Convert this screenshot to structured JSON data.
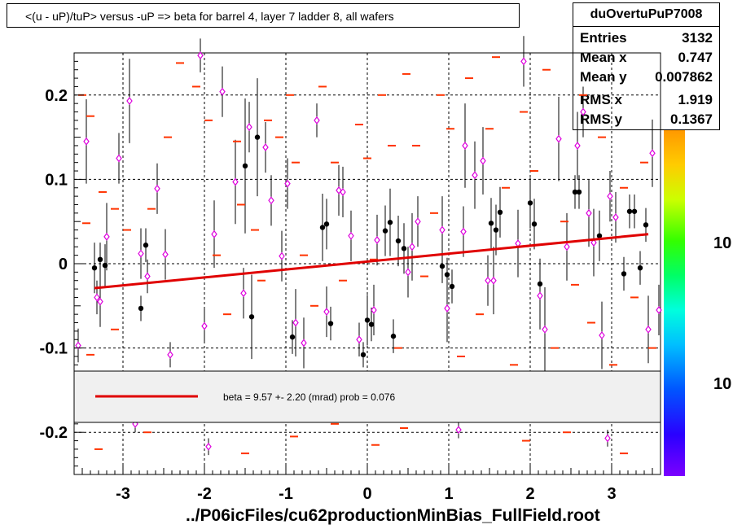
{
  "title": "<(u - uP)/tuP> versus  -uP => beta for barrel 4, layer 7 ladder 8, all wafers",
  "stats": {
    "name": "duOvertuPuP7008",
    "rows": [
      {
        "label": "Entries",
        "value": "3132"
      },
      {
        "label": "Mean x",
        "value": "0.747"
      },
      {
        "label": "Mean y",
        "value": "0.007862"
      },
      {
        "label": "RMS x",
        "value": "1.919"
      },
      {
        "label": "RMS y",
        "value": "0.1367"
      }
    ]
  },
  "legend": {
    "text": "beta =    9.57 +-  2.20 (mrad) prob = 0.076",
    "line_color": "#e00000"
  },
  "footer": "../P06icFiles/cu62productionMinBias_FullField.root",
  "colors": {
    "heat": "#ff3300",
    "profile_black": "#000000",
    "profile_magenta": "#dd00dd",
    "fit": "#e00000"
  },
  "chart_data": {
    "type": "scatter",
    "title": "<(u - uP)/tuP> versus  -uP => beta for barrel 4, layer 7 ladder 8, all wafers",
    "xlabel": "",
    "ylabel": "",
    "xlim": [
      -3.6,
      3.6
    ],
    "ylim": [
      -0.25,
      0.25
    ],
    "x_ticks": [
      -3,
      -2,
      -1,
      0,
      1,
      2,
      3
    ],
    "x_tick_labels": [
      "-3",
      "-2",
      "-1",
      "0",
      "1",
      "2",
      "3"
    ],
    "y_ticks": [
      -0.2,
      -0.1,
      0,
      0.1,
      0.2
    ],
    "y_tick_labels": [
      "-0.2",
      "-0.1",
      "0",
      "0.1",
      "0.2"
    ],
    "grid": true,
    "colorbar_tick_labels": [
      "10",
      "10"
    ],
    "fit_line": {
      "x": [
        -3.35,
        3.45
      ],
      "y": [
        -0.029,
        0.035
      ]
    },
    "series": [
      {
        "marker": "black-dot",
        "points": [
          [
            -3.35,
            -0.005,
            0.03
          ],
          [
            -3.28,
            0.005,
            0.02
          ],
          [
            -3.22,
            -0.002,
            0.025
          ],
          [
            -2.78,
            -0.053,
            0.015
          ],
          [
            -2.72,
            0.022,
            0.02
          ],
          [
            -1.5,
            0.116,
            0.08
          ],
          [
            -1.42,
            -0.063,
            0.05
          ],
          [
            -1.35,
            0.15,
            0.07
          ],
          [
            -0.92,
            -0.087,
            0.02
          ],
          [
            -0.55,
            0.043,
            0.04
          ],
          [
            -0.5,
            0.047,
            0.03
          ],
          [
            -0.45,
            -0.071,
            0.02
          ],
          [
            0.0,
            -0.067,
            0.03
          ],
          [
            0.05,
            -0.072,
            0.02
          ],
          [
            -0.05,
            -0.108,
            0.015
          ],
          [
            0.22,
            0.039,
            0.03
          ],
          [
            0.28,
            0.049,
            0.04
          ],
          [
            0.32,
            -0.086,
            0.02
          ],
          [
            0.38,
            0.027,
            0.03
          ],
          [
            0.45,
            0.018,
            0.03
          ],
          [
            0.92,
            -0.003,
            0.02
          ],
          [
            0.98,
            -0.013,
            0.02
          ],
          [
            1.04,
            -0.027,
            0.02
          ],
          [
            1.52,
            0.048,
            0.03
          ],
          [
            1.58,
            0.04,
            0.03
          ],
          [
            1.63,
            0.061,
            0.03
          ],
          [
            2.0,
            0.072,
            0.03
          ],
          [
            2.05,
            0.047,
            0.03
          ],
          [
            2.12,
            -0.024,
            0.03
          ],
          [
            2.55,
            0.085,
            0.02
          ],
          [
            2.6,
            0.085,
            0.02
          ],
          [
            2.85,
            0.033,
            0.03
          ],
          [
            3.15,
            -0.012,
            0.02
          ],
          [
            3.22,
            0.062,
            0.02
          ],
          [
            3.28,
            0.062,
            0.02
          ],
          [
            3.35,
            -0.005,
            0.02
          ],
          [
            3.42,
            0.046,
            0.02
          ]
        ]
      },
      {
        "marker": "magenta-open-diamond",
        "points": [
          [
            -3.45,
            0.145,
            0.05
          ],
          [
            -3.55,
            -0.097,
            0.02
          ],
          [
            -3.32,
            -0.04,
            0.02
          ],
          [
            -3.28,
            -0.045,
            0.03
          ],
          [
            -3.2,
            0.032,
            0.04
          ],
          [
            -3.05,
            0.125,
            0.03
          ],
          [
            -2.92,
            0.193,
            0.05
          ],
          [
            -2.78,
            0.012,
            0.03
          ],
          [
            -2.7,
            -0.015,
            0.02
          ],
          [
            -2.58,
            0.089,
            0.03
          ],
          [
            -2.48,
            0.011,
            0.03
          ],
          [
            -2.42,
            -0.108,
            0.015
          ],
          [
            -2.05,
            0.247,
            0.02
          ],
          [
            -2.0,
            -0.074,
            0.02
          ],
          [
            -1.88,
            0.035,
            0.04
          ],
          [
            -1.78,
            0.204,
            0.03
          ],
          [
            -1.62,
            0.097,
            0.05
          ],
          [
            -1.52,
            -0.035,
            0.03
          ],
          [
            -1.45,
            0.162,
            0.03
          ],
          [
            -1.25,
            0.138,
            0.03
          ],
          [
            -1.18,
            0.075,
            0.03
          ],
          [
            -1.05,
            0.009,
            0.03
          ],
          [
            -0.98,
            0.095,
            0.03
          ],
          [
            -0.88,
            -0.07,
            0.04
          ],
          [
            -0.78,
            -0.094,
            0.03
          ],
          [
            -0.62,
            0.17,
            0.02
          ],
          [
            -0.5,
            -0.057,
            0.03
          ],
          [
            -0.35,
            0.087,
            0.03
          ],
          [
            -0.3,
            0.085,
            0.03
          ],
          [
            -0.2,
            0.033,
            0.03
          ],
          [
            -0.1,
            -0.09,
            0.02
          ],
          [
            0.08,
            -0.055,
            0.03
          ],
          [
            0.12,
            0.028,
            0.03
          ],
          [
            0.5,
            -0.01,
            0.03
          ],
          [
            0.55,
            0.02,
            0.04
          ],
          [
            0.62,
            0.05,
            0.03
          ],
          [
            0.92,
            0.04,
            0.04
          ],
          [
            0.98,
            -0.053,
            0.04
          ],
          [
            1.18,
            0.038,
            0.03
          ],
          [
            1.2,
            0.14,
            0.05
          ],
          [
            1.32,
            0.105,
            0.04
          ],
          [
            1.42,
            0.122,
            0.04
          ],
          [
            1.48,
            -0.02,
            0.03
          ],
          [
            1.55,
            -0.02,
            0.04
          ],
          [
            1.85,
            0.024,
            0.04
          ],
          [
            1.92,
            0.24,
            0.03
          ],
          [
            2.12,
            -0.038,
            0.04
          ],
          [
            2.18,
            -0.078,
            0.05
          ],
          [
            2.35,
            0.148,
            0.05
          ],
          [
            2.45,
            0.02,
            0.04
          ],
          [
            2.58,
            0.14,
            0.04
          ],
          [
            2.65,
            0.18,
            0.03
          ],
          [
            2.72,
            0.06,
            0.04
          ],
          [
            2.78,
            0.025,
            0.04
          ],
          [
            2.88,
            -0.085,
            0.04
          ],
          [
            2.98,
            0.08,
            0.03
          ],
          [
            3.05,
            0.055,
            0.03
          ],
          [
            3.45,
            -0.078,
            0.04
          ],
          [
            3.5,
            0.131,
            0.04
          ],
          [
            3.58,
            -0.055,
            0.03
          ],
          [
            -2.85,
            -0.19,
            0.01
          ],
          [
            1.12,
            -0.197,
            0.01
          ],
          [
            2.95,
            -0.207,
            0.01
          ],
          [
            -1.95,
            -0.217,
            0.01
          ]
        ]
      },
      {
        "marker": "heat-dash",
        "points": [
          [
            -3.5,
            0.2
          ],
          [
            -3.4,
            0.175
          ],
          [
            -3.25,
            0.085
          ],
          [
            -3.1,
            0.065
          ],
          [
            -3.45,
            0.048
          ],
          [
            -3.1,
            -0.078
          ],
          [
            -3.4,
            -0.108
          ],
          [
            -2.95,
            0.04
          ],
          [
            -2.65,
            0.065
          ],
          [
            -2.45,
            0.15
          ],
          [
            -2.3,
            0.238
          ],
          [
            -2.1,
            0.21
          ],
          [
            -1.95,
            0.17
          ],
          [
            -1.85,
            0.01
          ],
          [
            -1.72,
            -0.06
          ],
          [
            -1.6,
            0.145
          ],
          [
            -1.55,
            0.07
          ],
          [
            -1.38,
            0.04
          ],
          [
            -1.3,
            -0.02
          ],
          [
            -1.22,
            0.17
          ],
          [
            -1.08,
            0.15
          ],
          [
            -0.95,
            0.2
          ],
          [
            -0.88,
            0.12
          ],
          [
            -0.78,
            0.01
          ],
          [
            -0.65,
            -0.05
          ],
          [
            -0.55,
            0.21
          ],
          [
            -0.4,
            0.12
          ],
          [
            -0.3,
            -0.02
          ],
          [
            -0.22,
            -0.13
          ],
          [
            -0.1,
            0.165
          ],
          [
            0.0,
            0.125
          ],
          [
            0.08,
            0.005
          ],
          [
            0.18,
            0.2
          ],
          [
            0.3,
            0.14
          ],
          [
            0.38,
            -0.1
          ],
          [
            0.48,
            0.225
          ],
          [
            0.6,
            0.14
          ],
          [
            0.7,
            -0.015
          ],
          [
            0.82,
            0.06
          ],
          [
            0.9,
            0.2
          ],
          [
            1.02,
            0.16
          ],
          [
            1.15,
            -0.11
          ],
          [
            1.25,
            0.22
          ],
          [
            1.38,
            -0.06
          ],
          [
            1.5,
            0.16
          ],
          [
            1.58,
            0.245
          ],
          [
            1.7,
            0.09
          ],
          [
            1.8,
            -0.12
          ],
          [
            1.92,
            0.18
          ],
          [
            2.05,
            0.11
          ],
          [
            2.2,
            0.23
          ],
          [
            2.3,
            -0.1
          ],
          [
            2.42,
            0.05
          ],
          [
            2.55,
            -0.025
          ],
          [
            2.65,
            0.2
          ],
          [
            2.75,
            -0.07
          ],
          [
            2.88,
            0.15
          ],
          [
            3.02,
            -0.12
          ],
          [
            3.15,
            0.09
          ],
          [
            3.28,
            -0.04
          ],
          [
            3.4,
            0.12
          ],
          [
            3.5,
            -0.1
          ],
          [
            -3.3,
            -0.22
          ],
          [
            -2.7,
            -0.2
          ],
          [
            -2.2,
            -0.185
          ],
          [
            -1.5,
            -0.225
          ],
          [
            -0.9,
            -0.205
          ],
          [
            -0.4,
            -0.19
          ],
          [
            0.1,
            -0.215
          ],
          [
            0.45,
            -0.195
          ],
          [
            1.4,
            -0.185
          ],
          [
            1.95,
            -0.21
          ],
          [
            2.45,
            -0.2
          ],
          [
            3.15,
            -0.225
          ]
        ]
      }
    ]
  }
}
